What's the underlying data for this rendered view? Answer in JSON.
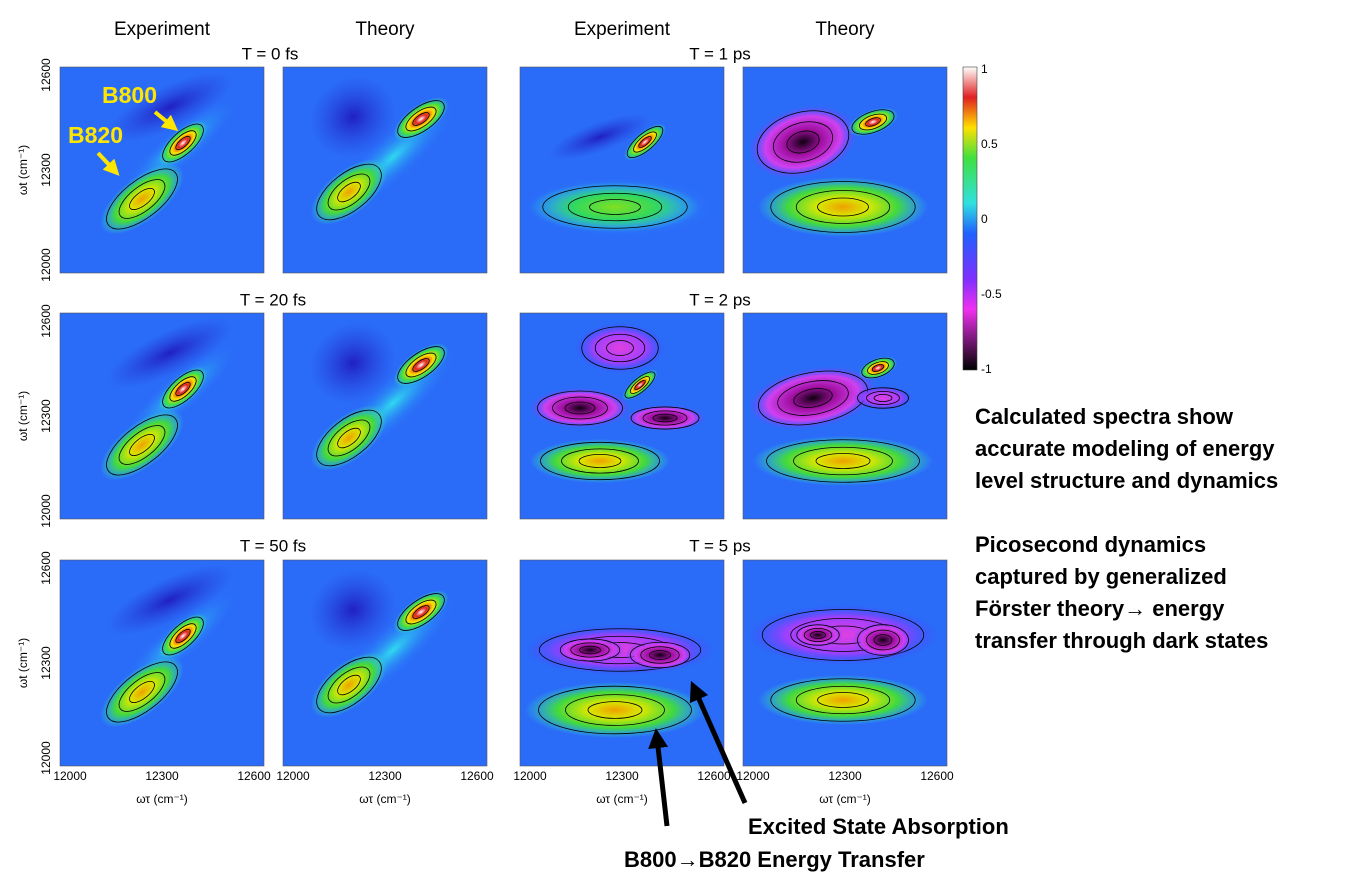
{
  "column_headers": [
    "Experiment",
    "Theory",
    "Experiment",
    "Theory"
  ],
  "panel_titles": [
    "T = 0 fs",
    "T = 1 ps",
    "T = 20 fs",
    "T = 2 ps",
    "T = 50 fs",
    "T = 5 ps"
  ],
  "y_axis_label": "ωt (cm⁻¹)",
  "x_axis_label": "ωτ (cm⁻¹)",
  "x_ticks": [
    12000,
    12300,
    12600
  ],
  "y_ticks": [
    12600,
    12300,
    12000
  ],
  "colorbar_ticks": [
    1,
    0.5,
    0,
    -0.5,
    -1
  ],
  "peak_labels": [
    "B800",
    "B820"
  ],
  "notes": [
    [
      "Calculated spectra show",
      "accurate modeling of energy",
      "level structure and dynamics"
    ],
    [
      "Picosecond dynamics",
      "captured by generalized",
      "Förster theory→ energy",
      "transfer through dark states"
    ]
  ],
  "arrow_labels": [
    "Excited State Absorption",
    "B800→B820 Energy Transfer"
  ]
}
